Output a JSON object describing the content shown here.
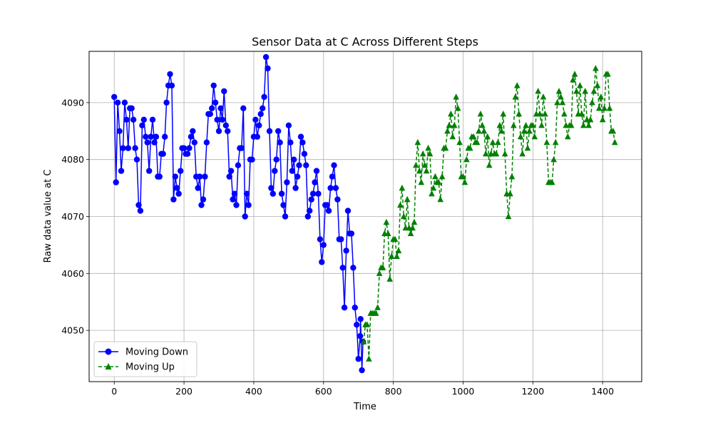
{
  "chart_data": {
    "type": "line",
    "title": "Sensor Data at C Across Different Steps",
    "xlabel": "Time",
    "ylabel": "Raw data value at C",
    "xlim": [
      -72,
      1512
    ],
    "ylim": [
      4041,
      4099
    ],
    "xticks": [
      0,
      200,
      400,
      600,
      800,
      1000,
      1200,
      1400
    ],
    "yticks": [
      4050,
      4060,
      4070,
      4080,
      4090
    ],
    "grid": true,
    "legend_position": "lower-left",
    "series": [
      {
        "name": "Moving Down",
        "color": "#0000ff",
        "marker": "circle",
        "linestyle": "solid",
        "keypoints": [
          [
            0,
            4091
          ],
          [
            5,
            4076
          ],
          [
            10,
            4090
          ],
          [
            20,
            4078
          ],
          [
            30,
            4090
          ],
          [
            40,
            4082
          ],
          [
            50,
            4089
          ],
          [
            60,
            4082
          ],
          [
            75,
            4071
          ],
          [
            80,
            4086
          ],
          [
            100,
            4078
          ],
          [
            110,
            4087
          ],
          [
            130,
            4077
          ],
          [
            150,
            4090
          ],
          [
            165,
            4093
          ],
          [
            170,
            4073
          ],
          [
            180,
            4075
          ],
          [
            200,
            4082
          ],
          [
            220,
            4084
          ],
          [
            250,
            4072
          ],
          [
            270,
            4088
          ],
          [
            290,
            4090
          ],
          [
            300,
            4085
          ],
          [
            315,
            4092
          ],
          [
            330,
            4077
          ],
          [
            350,
            4072
          ],
          [
            370,
            4089
          ],
          [
            375,
            4070
          ],
          [
            400,
            4084
          ],
          [
            420,
            4088
          ],
          [
            440,
            4096
          ],
          [
            450,
            4075
          ],
          [
            470,
            4085
          ],
          [
            490,
            4070
          ],
          [
            500,
            4086
          ],
          [
            520,
            4075
          ],
          [
            540,
            4083
          ],
          [
            560,
            4071
          ],
          [
            580,
            4078
          ],
          [
            595,
            4062
          ],
          [
            610,
            4072
          ],
          [
            625,
            4077
          ],
          [
            640,
            4073
          ],
          [
            650,
            4066
          ],
          [
            660,
            4054
          ],
          [
            670,
            4071
          ],
          [
            685,
            4061
          ],
          [
            690,
            4054
          ],
          [
            700,
            4045
          ],
          [
            706,
            4052
          ],
          [
            710,
            4043
          ],
          [
            713,
            4048
          ]
        ]
      },
      {
        "name": "Moving Up",
        "color": "#008000",
        "marker": "triangle",
        "linestyle": "dashed",
        "keypoints": [
          [
            715,
            4048
          ],
          [
            720,
            4051
          ],
          [
            730,
            4045
          ],
          [
            740,
            4053
          ],
          [
            750,
            4053
          ],
          [
            760,
            4060
          ],
          [
            770,
            4061
          ],
          [
            780,
            4069
          ],
          [
            790,
            4059
          ],
          [
            800,
            4066
          ],
          [
            810,
            4063
          ],
          [
            820,
            4072
          ],
          [
            830,
            4070
          ],
          [
            840,
            4073
          ],
          [
            850,
            4067
          ],
          [
            860,
            4069
          ],
          [
            870,
            4083
          ],
          [
            880,
            4076
          ],
          [
            890,
            4079
          ],
          [
            900,
            4082
          ],
          [
            910,
            4074
          ],
          [
            920,
            4077
          ],
          [
            930,
            4076
          ],
          [
            950,
            4082
          ],
          [
            970,
            4084
          ],
          [
            985,
            4089
          ],
          [
            1000,
            4077
          ],
          [
            1020,
            4082
          ],
          [
            1040,
            4083
          ],
          [
            1060,
            4085
          ],
          [
            1080,
            4081
          ],
          [
            1100,
            4083
          ],
          [
            1115,
            4088
          ],
          [
            1130,
            4070
          ],
          [
            1150,
            4091
          ],
          [
            1170,
            4081
          ],
          [
            1190,
            4085
          ],
          [
            1210,
            4088
          ],
          [
            1230,
            4091
          ],
          [
            1250,
            4076
          ],
          [
            1270,
            4090
          ],
          [
            1290,
            4088
          ],
          [
            1310,
            4086
          ],
          [
            1320,
            4095
          ],
          [
            1340,
            4088
          ],
          [
            1355,
            4087
          ],
          [
            1370,
            4090
          ],
          [
            1385,
            4093
          ],
          [
            1400,
            4087
          ],
          [
            1410,
            4095
          ],
          [
            1420,
            4089
          ],
          [
            1430,
            4085
          ],
          [
            1435,
            4083
          ]
        ]
      }
    ]
  }
}
